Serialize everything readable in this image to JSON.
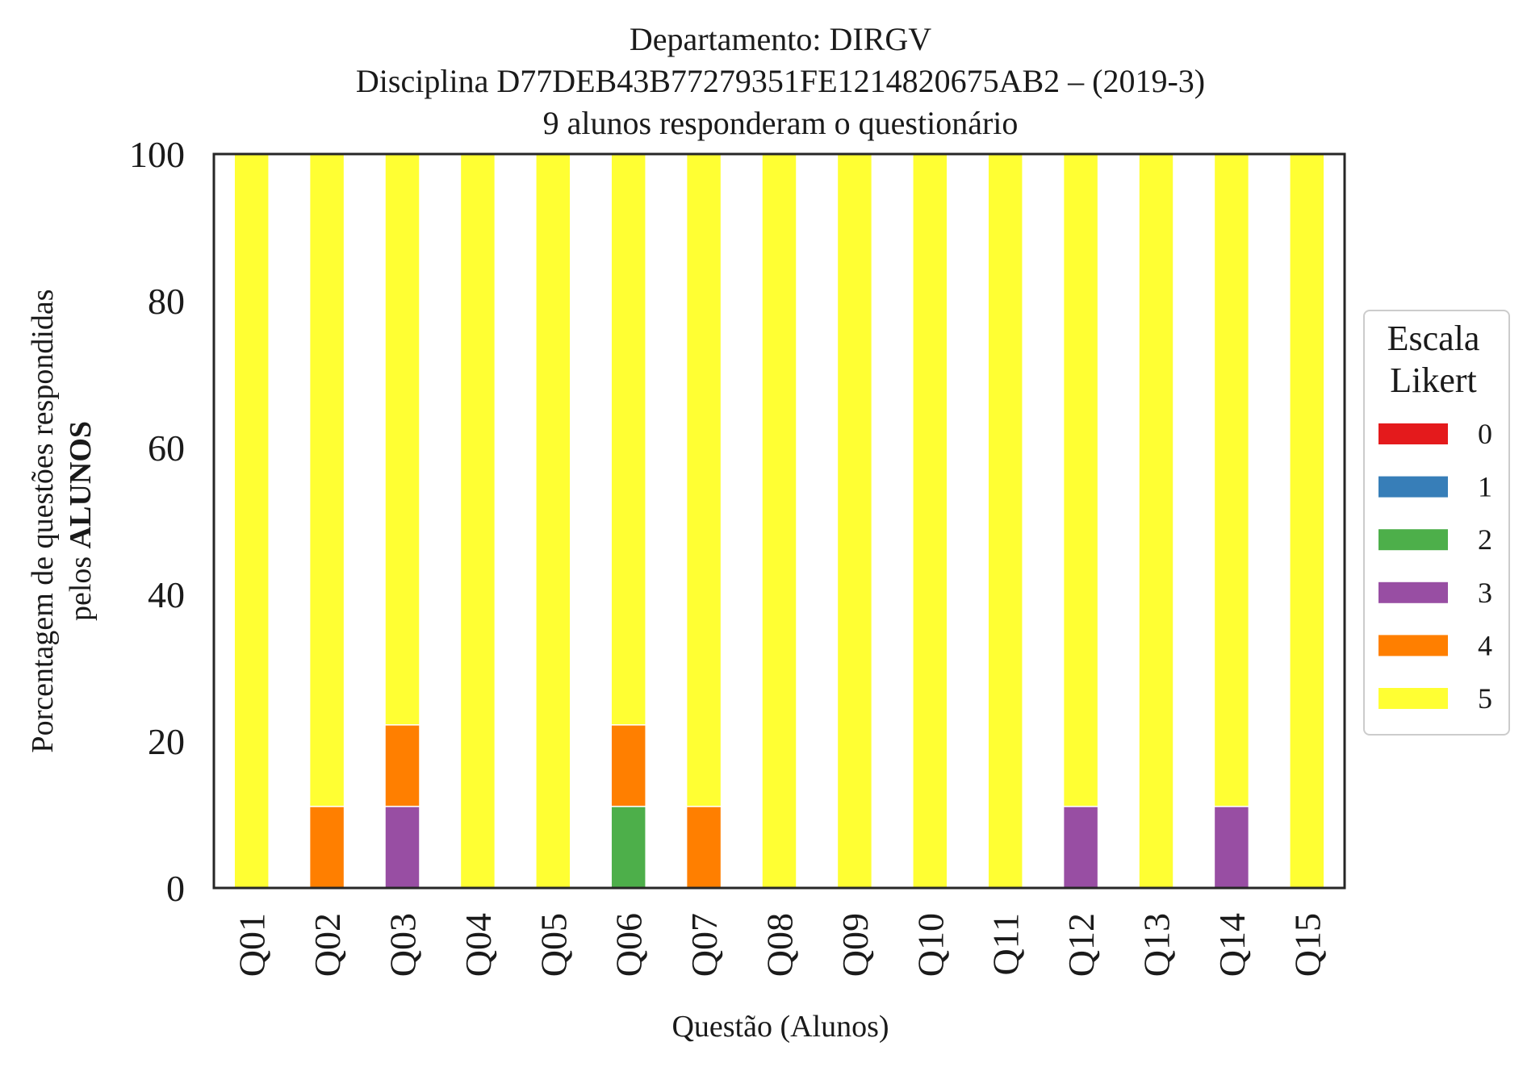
{
  "chart_data": {
    "type": "bar",
    "stacked": true,
    "title_lines": [
      "Departamento: DIRGV",
      "Disciplina D77DEB43B77279351FE1214820675AB2 – (2019-3)",
      "9 alunos responderam o questionário"
    ],
    "xlabel": "Questão (Alunos)",
    "ylabel_line1": "Porcentagem de questões respondidas",
    "ylabel_line2_prefix": "pelos ",
    "ylabel_line2_bold": "ALUNOS",
    "ylim": [
      0,
      100
    ],
    "yticks": [
      "0",
      "20",
      "40",
      "60",
      "80",
      "100"
    ],
    "grid": false,
    "legend_placement": "right",
    "legend_title_lines": [
      "Escala",
      "Likert"
    ],
    "categories": [
      "Q01",
      "Q02",
      "Q03",
      "Q04",
      "Q05",
      "Q06",
      "Q07",
      "Q08",
      "Q09",
      "Q10",
      "Q11",
      "Q12",
      "Q13",
      "Q14",
      "Q15"
    ],
    "series": [
      {
        "name": "0",
        "color": "#e41a1c",
        "values": [
          0,
          0,
          0,
          0,
          0,
          0,
          0,
          0,
          0,
          0,
          0,
          0,
          0,
          0,
          0
        ]
      },
      {
        "name": "1",
        "color": "#377eb8",
        "values": [
          0,
          0,
          0,
          0,
          0,
          0,
          0,
          0,
          0,
          0,
          0,
          0,
          0,
          0,
          0
        ]
      },
      {
        "name": "2",
        "color": "#4daf4a",
        "values": [
          0,
          0,
          0,
          0,
          0,
          11.11,
          0,
          0,
          0,
          0,
          0,
          0,
          0,
          0,
          0
        ]
      },
      {
        "name": "3",
        "color": "#984ea3",
        "values": [
          0,
          0,
          11.11,
          0,
          0,
          0,
          0,
          0,
          0,
          0,
          0,
          11.11,
          0,
          11.11,
          0
        ]
      },
      {
        "name": "4",
        "color": "#ff7f00",
        "values": [
          0,
          11.11,
          11.11,
          0,
          0,
          11.11,
          11.11,
          0,
          0,
          0,
          0,
          0,
          0,
          0,
          0
        ]
      },
      {
        "name": "5",
        "color": "#ffff33",
        "values": [
          100,
          88.89,
          77.78,
          100,
          100,
          77.78,
          88.89,
          100,
          100,
          100,
          100,
          88.89,
          100,
          88.89,
          100
        ]
      }
    ]
  }
}
